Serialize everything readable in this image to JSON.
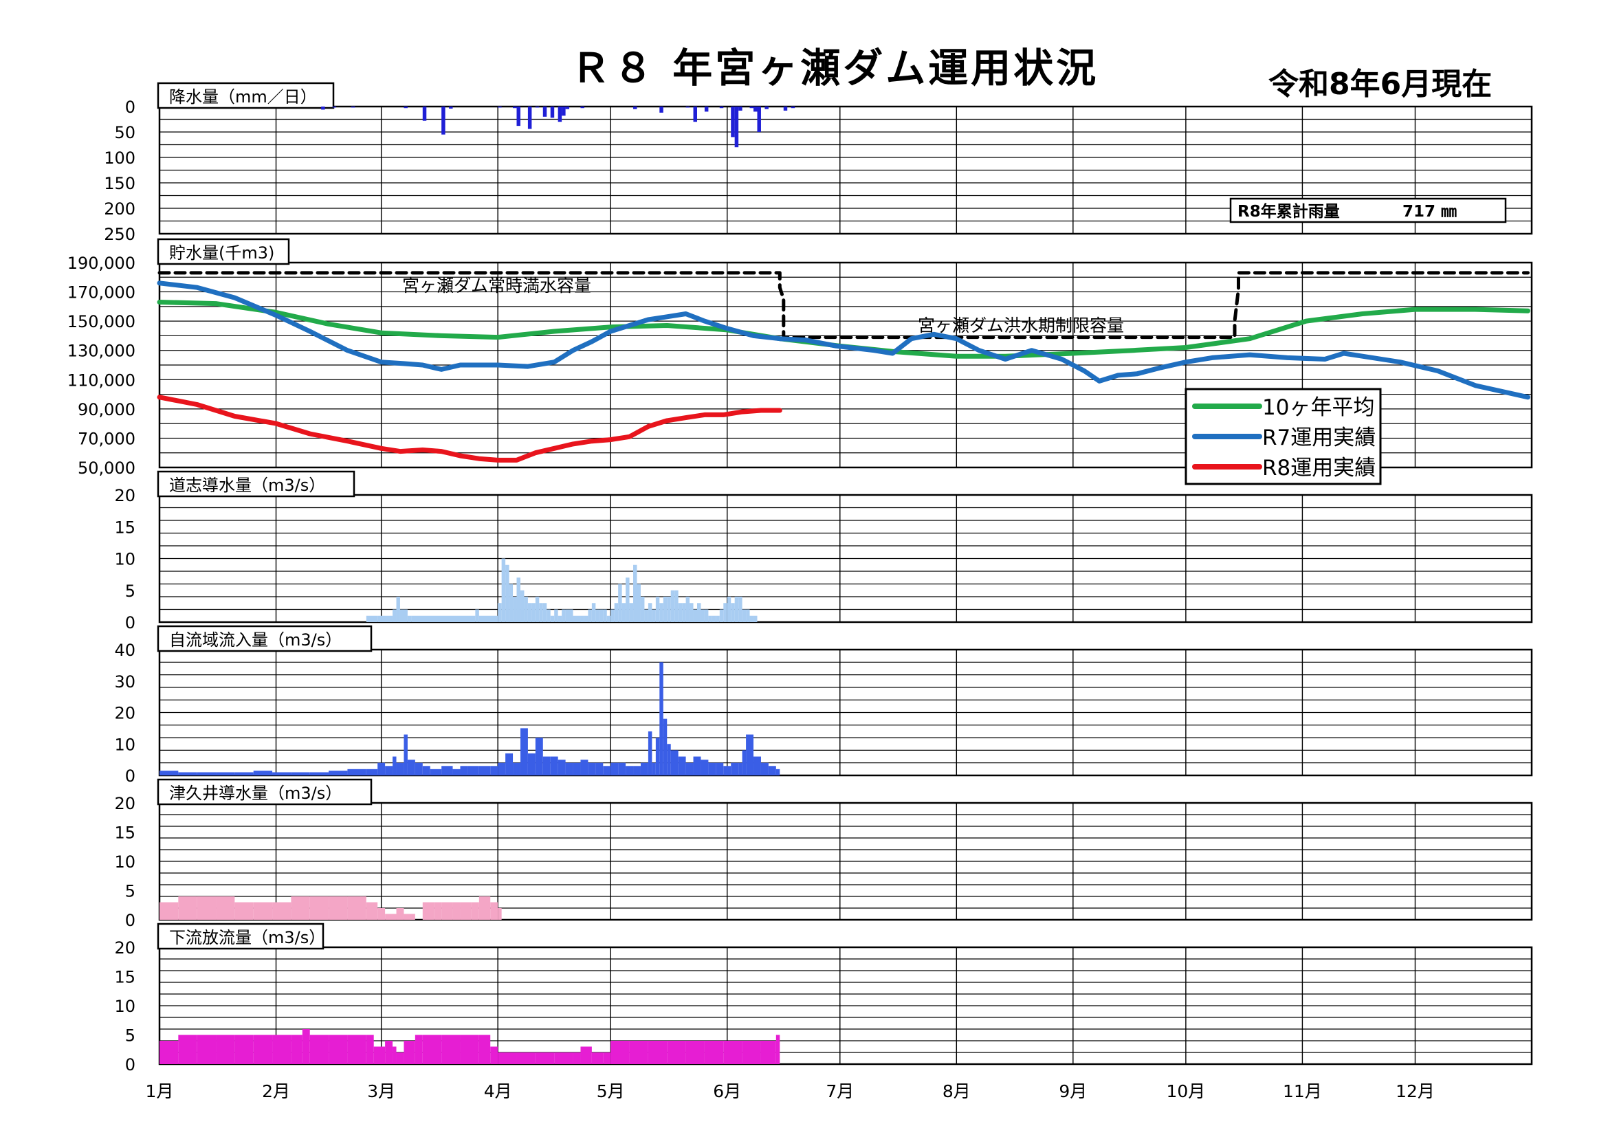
{
  "page": {
    "title": "Ｒ８ 年宮ヶ瀬ダム運用状況",
    "date": "令和8年6月現在"
  },
  "months": [
    "1月",
    "2月",
    "3月",
    "4月",
    "5月",
    "6月",
    "7月",
    "8月",
    "9月",
    "10月",
    "11月",
    "12月"
  ],
  "colors": {
    "rain": "#1f1fd6",
    "avg10": "#22aa4a",
    "r7": "#1f6fc0",
    "r8": "#e8141c",
    "doshi": "#a9cdf2",
    "inflow": "#3a5ee6",
    "tsukui": "#f4a6c6",
    "release": "#e61ed3",
    "dashed": "#000000"
  },
  "chart_data": [
    {
      "id": "rain",
      "type": "bar",
      "title": "降水量（mm／日）",
      "ylim": [
        0,
        250
      ],
      "y_inverted": true,
      "yticks": [
        "0",
        "50",
        "100",
        "150",
        "200",
        "250"
      ],
      "annotation": {
        "label": "R8年累計雨量",
        "value": "717 ㎜"
      },
      "series": [
        {
          "x_day": [
            43,
            46,
            51,
            65,
            70,
            75,
            77,
            90,
            94,
            95,
            98,
            100,
            102,
            104,
            106,
            107,
            108,
            112,
            126,
            133,
            140,
            142,
            145,
            149,
            152,
            153,
            154,
            158,
            157,
            159,
            161,
            166,
            168
          ],
          "values": [
            6,
            2,
            2,
            3,
            28,
            55,
            4,
            2,
            3,
            38,
            44,
            2,
            20,
            22,
            30,
            18,
            5,
            3,
            5,
            12,
            2,
            30,
            10,
            3,
            60,
            80,
            8,
            10,
            3,
            50,
            5,
            8,
            3
          ]
        }
      ]
    },
    {
      "id": "storage",
      "type": "line",
      "title": "貯水量(千m3)",
      "ylim": [
        50000,
        190000
      ],
      "yticks": [
        "190,000",
        "170,000",
        "150,000",
        "130,000",
        "110,000",
        "90,000",
        "70,000",
        "50,000"
      ],
      "annotations": [
        "宮ヶ瀬ダム常時満水容量",
        "宮ヶ瀬ダム洪水期制限容量"
      ],
      "capacity_line": {
        "x_day": [
          0,
          165,
          165,
          166,
          166,
          286,
          286,
          287,
          287,
          364
        ],
        "values": [
          183000,
          183000,
          173000,
          165000,
          139000,
          139000,
          150000,
          172000,
          183000,
          183000
        ]
      },
      "series": [
        {
          "name": "10ヶ年平均",
          "x_day": [
            0,
            15,
            31,
            45,
            59,
            75,
            90,
            105,
            120,
            135,
            151,
            165,
            181,
            196,
            212,
            225,
            243,
            259,
            273,
            290,
            305,
            320,
            334,
            350,
            364
          ],
          "values": [
            163000,
            162000,
            156000,
            148000,
            142000,
            140000,
            139000,
            143000,
            146000,
            147000,
            144000,
            138000,
            133000,
            129000,
            126000,
            126000,
            128000,
            130000,
            132000,
            138000,
            150000,
            155000,
            158000,
            158000,
            157000
          ]
        },
        {
          "name": "R7運用実績",
          "x_day": [
            0,
            10,
            20,
            31,
            40,
            50,
            59,
            65,
            70,
            75,
            80,
            90,
            98,
            105,
            110,
            115,
            120,
            125,
            130,
            135,
            140,
            145,
            151,
            158,
            165,
            172,
            180,
            190,
            195,
            200,
            206,
            212,
            218,
            225,
            232,
            240,
            246,
            250,
            255,
            260,
            266,
            273,
            280,
            290,
            300,
            310,
            315,
            320,
            330,
            340,
            350,
            364
          ],
          "values": [
            176000,
            173000,
            166000,
            154000,
            143000,
            130000,
            122000,
            121000,
            120000,
            117000,
            120000,
            120000,
            119000,
            122000,
            130000,
            136000,
            143000,
            147000,
            151000,
            153000,
            155000,
            150000,
            145000,
            140000,
            138000,
            137000,
            133000,
            130000,
            128000,
            138000,
            141000,
            138000,
            130000,
            124000,
            130000,
            124000,
            116000,
            109000,
            113000,
            114000,
            118000,
            122000,
            125000,
            127000,
            125000,
            124000,
            128000,
            126000,
            122000,
            116000,
            106000,
            98000
          ]
        },
        {
          "name": "R8運用実績",
          "x_day": [
            0,
            10,
            20,
            31,
            40,
            50,
            59,
            64,
            70,
            75,
            80,
            85,
            90,
            95,
            100,
            105,
            110,
            115,
            120,
            125,
            130,
            135,
            140,
            145,
            150,
            155,
            160,
            165
          ],
          "values": [
            98000,
            93000,
            85000,
            80000,
            73000,
            68000,
            63000,
            61000,
            62000,
            61000,
            58000,
            56000,
            55000,
            55000,
            60000,
            63000,
            66000,
            68000,
            69000,
            71000,
            78000,
            82000,
            84000,
            86000,
            86000,
            88000,
            89000,
            89000
          ]
        }
      ],
      "legend_position": "right"
    },
    {
      "id": "doshi",
      "type": "bar",
      "title": "道志導水量（m3/s）",
      "ylim": [
        0,
        20
      ],
      "yticks": [
        "20",
        "15",
        "10",
        "5",
        "0"
      ],
      "series": [
        {
          "x_day": [
            55,
            58,
            62,
            63,
            64,
            66,
            67,
            84,
            85,
            90,
            91,
            92,
            93,
            94,
            95,
            96,
            97,
            98,
            99,
            100,
            101,
            102,
            103,
            104,
            105,
            106,
            107,
            108,
            110,
            112,
            113,
            114,
            115,
            116,
            117,
            118,
            119,
            120,
            121,
            122,
            123,
            124,
            125,
            126,
            127,
            128,
            129,
            130,
            131,
            132,
            133,
            134,
            135,
            136,
            137,
            138,
            139,
            140,
            141,
            142,
            143,
            144,
            145,
            146,
            147,
            148,
            149,
            150,
            151,
            152,
            153,
            154,
            155,
            156,
            157,
            158,
            159
          ],
          "values": [
            1,
            1,
            2,
            4,
            2,
            1,
            1,
            2,
            1,
            3,
            10,
            9,
            6,
            4,
            7,
            5,
            4,
            3,
            3,
            4,
            3,
            3,
            2,
            1,
            2,
            1,
            2,
            2,
            1,
            1,
            1,
            2,
            3,
            2,
            2,
            2,
            1,
            2,
            3,
            6,
            3,
            7,
            3,
            9,
            6,
            4,
            2,
            3,
            2,
            4,
            3,
            4,
            4,
            5,
            5,
            3,
            3,
            4,
            3,
            2,
            3,
            2,
            2,
            1,
            1,
            1,
            2,
            3,
            4,
            3,
            4,
            4,
            2,
            2,
            1,
            1,
            0
          ]
        }
      ]
    },
    {
      "id": "inflow",
      "type": "bar",
      "title": "自流域流入量（m3/s）",
      "ylim": [
        0,
        40
      ],
      "yticks": [
        "40",
        "30",
        "20",
        "10",
        "0"
      ],
      "series": [
        {
          "x_day": [
            0,
            5,
            10,
            15,
            20,
            25,
            30,
            35,
            40,
            45,
            50,
            55,
            58,
            60,
            62,
            63,
            65,
            66,
            68,
            70,
            72,
            75,
            78,
            80,
            82,
            85,
            88,
            90,
            92,
            94,
            95,
            96,
            98,
            100,
            102,
            104,
            106,
            108,
            110,
            112,
            114,
            116,
            118,
            120,
            122,
            124,
            126,
            128,
            130,
            131,
            132,
            133,
            134,
            135,
            136,
            138,
            140,
            142,
            144,
            146,
            148,
            150,
            152,
            154,
            155,
            156,
            158,
            160,
            162,
            164
          ],
          "values": [
            1.5,
            1,
            1,
            1,
            1,
            1.5,
            1,
            1,
            1,
            1.5,
            2,
            2,
            4,
            3,
            6,
            4,
            13,
            5,
            4,
            3,
            2,
            3,
            2,
            3,
            3,
            3,
            3,
            4,
            7,
            4,
            4,
            15,
            7,
            12,
            6,
            6,
            5,
            4,
            4,
            5,
            4,
            4,
            3,
            4,
            4,
            3,
            3,
            4,
            14,
            4,
            12,
            36,
            18,
            10,
            8,
            6,
            4,
            6,
            5,
            4,
            4,
            3,
            4,
            4,
            8,
            13,
            6,
            4,
            3,
            2
          ]
        }
      ]
    },
    {
      "id": "tsukui",
      "type": "bar",
      "title": "津久井導水量（m3/s）",
      "ylim": [
        0,
        20
      ],
      "yticks": [
        "20",
        "15",
        "10",
        "5",
        "0"
      ],
      "series": [
        {
          "x_day": [
            0,
            5,
            10,
            15,
            20,
            25,
            30,
            35,
            40,
            45,
            50,
            55,
            58,
            60,
            63,
            65,
            68,
            70,
            73,
            75,
            78,
            80,
            83,
            85,
            88,
            90
          ],
          "values": [
            3,
            4,
            4,
            4,
            3,
            3,
            3,
            4,
            4,
            4,
            4,
            3,
            2,
            1,
            2,
            1,
            0,
            3,
            3,
            3,
            3,
            3,
            3,
            4,
            3,
            2
          ]
        }
      ]
    },
    {
      "id": "release",
      "type": "bar",
      "title": "下流放流量（m3/s）",
      "ylim": [
        0,
        20
      ],
      "yticks": [
        "20",
        "15",
        "10",
        "5",
        "0"
      ],
      "series": [
        {
          "x_day": [
            0,
            5,
            10,
            15,
            20,
            25,
            30,
            35,
            38,
            40,
            45,
            50,
            55,
            57,
            60,
            62,
            63,
            65,
            68,
            70,
            75,
            80,
            85,
            88,
            90,
            95,
            100,
            105,
            110,
            112,
            115,
            118,
            120,
            125,
            130,
            135,
            140,
            145,
            150,
            155,
            160,
            164
          ],
          "values": [
            4,
            5,
            5,
            5,
            5,
            5,
            5,
            5,
            6,
            5,
            5,
            5,
            5,
            3,
            4,
            3,
            2,
            4,
            5,
            5,
            5,
            5,
            5,
            3,
            2,
            2,
            2,
            2,
            2,
            3,
            2,
            2,
            4,
            4,
            4,
            4,
            4,
            4,
            4,
            4,
            4,
            5
          ]
        }
      ]
    }
  ]
}
